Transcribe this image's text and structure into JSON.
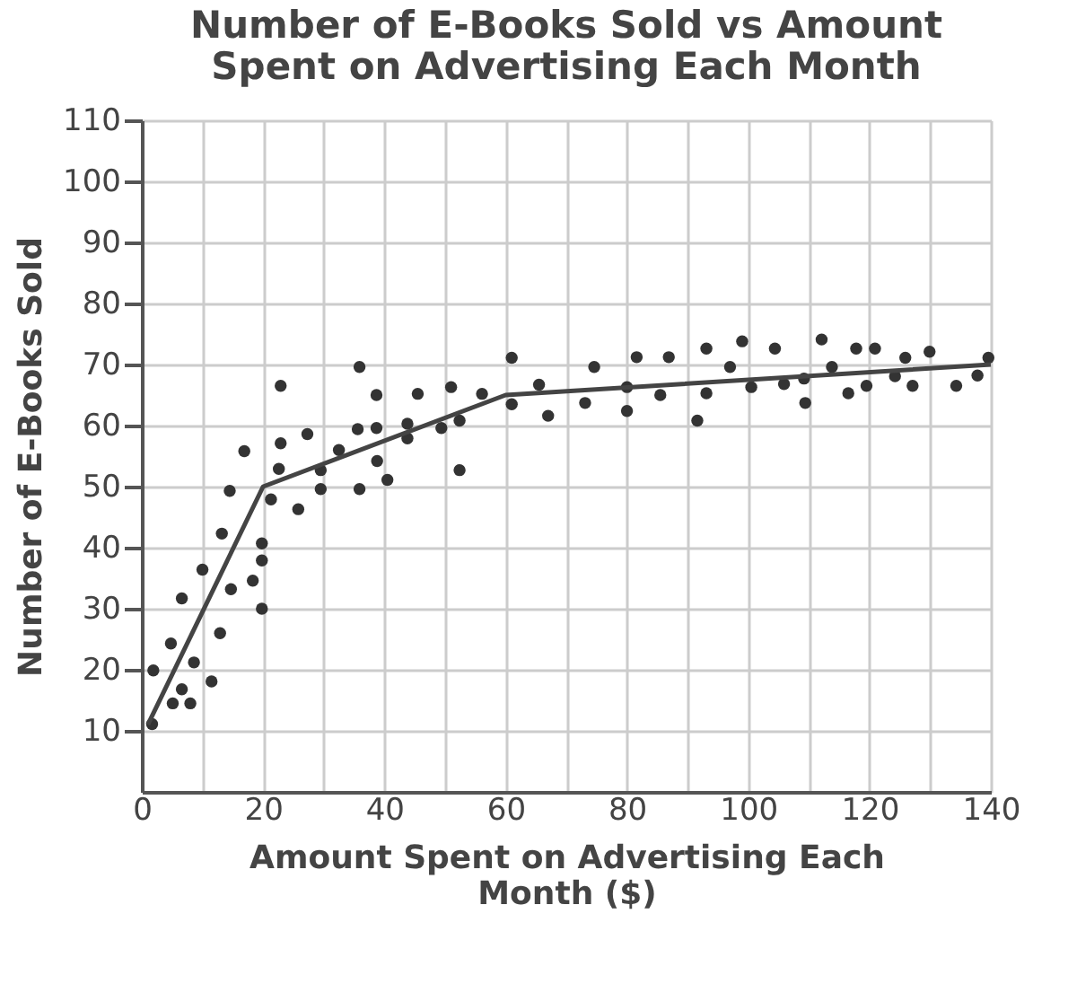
{
  "chart_data": {
    "type": "scatter",
    "title": "Number of E-Books Sold vs Amount Spent on Advertising Each Month",
    "xlabel": "Amount Spent on Advertising Each Month ($)",
    "ylabel": "Number of E-Books Sold",
    "xlim": [
      0,
      140
    ],
    "xticks": [
      0,
      {
        "value": 10,
        "label": null
      },
      20,
      {
        "value": 30,
        "label": null
      },
      40,
      {
        "value": 50,
        "label": null
      },
      60,
      {
        "value": 70,
        "label": null
      },
      80,
      {
        "value": 90,
        "label": null
      },
      100,
      {
        "value": 110,
        "label": null
      },
      120,
      {
        "value": 130,
        "label": null
      },
      140
    ],
    "ylim": [
      0,
      110
    ],
    "yticks": [
      10,
      20,
      30,
      40,
      50,
      60,
      70,
      80,
      90,
      100,
      110
    ],
    "grid": true,
    "series": [
      {
        "type": "scatter",
        "marker": "circle",
        "color": "#333333",
        "x": [
          1.7,
          1.9,
          5.1,
          6.6,
          8,
          4.8,
          8.6,
          11.5,
          6.6,
          12.9,
          10,
          14.7,
          13.2,
          14.5,
          18.3,
          19.8,
          19.8,
          19.8,
          21.3,
          22.6,
          25.8,
          29.5,
          29.5,
          35.9,
          38.8,
          40.5,
          16.9,
          22.9,
          22.9,
          27.3,
          32.5,
          35.6,
          35.9,
          38.7,
          38.7,
          43.8,
          43.8,
          45.5,
          49.4,
          51,
          52.4,
          52.4,
          56.1,
          61,
          61,
          65.5,
          67,
          73.1,
          74.6,
          80,
          80,
          81.6,
          85.5,
          86.9,
          91.6,
          93.1,
          93.1,
          97,
          99,
          100.5,
          104.4,
          105.9,
          109.2,
          109.4,
          112.1,
          113.8,
          116.5,
          117.8,
          119.5,
          120.9,
          124.2,
          125.9,
          127.1,
          129.9,
          134.3,
          137.8,
          139.6
        ],
        "values": [
          11.1,
          19.9,
          14.5,
          16.8,
          14.5,
          24.3,
          21.2,
          18.1,
          31.7,
          26,
          36.4,
          33.2,
          42.3,
          49.3,
          34.6,
          37.9,
          40.7,
          30,
          47.9,
          52.9,
          46.3,
          49.6,
          52.7,
          49.6,
          54.2,
          51.1,
          55.8,
          57.1,
          66.5,
          58.6,
          56,
          59.4,
          69.6,
          65,
          59.6,
          60.3,
          57.9,
          65.2,
          59.6,
          66.3,
          60.8,
          52.7,
          65.2,
          71.1,
          63.5,
          66.7,
          61.6,
          63.7,
          69.6,
          66.3,
          62.4,
          71.2,
          65,
          71.2,
          60.8,
          72.6,
          65.3,
          69.6,
          73.8,
          66.3,
          72.6,
          66.8,
          67.7,
          63.7,
          74.1,
          69.6,
          65.3,
          72.6,
          66.5,
          72.6,
          68.1,
          71.1,
          66.5,
          72.1,
          66.5,
          68.2,
          71.1
        ]
      },
      {
        "type": "line",
        "color": "#444444",
        "x": [
          1,
          20,
          60,
          140
        ],
        "values": [
          11,
          50,
          65,
          70
        ]
      }
    ]
  }
}
